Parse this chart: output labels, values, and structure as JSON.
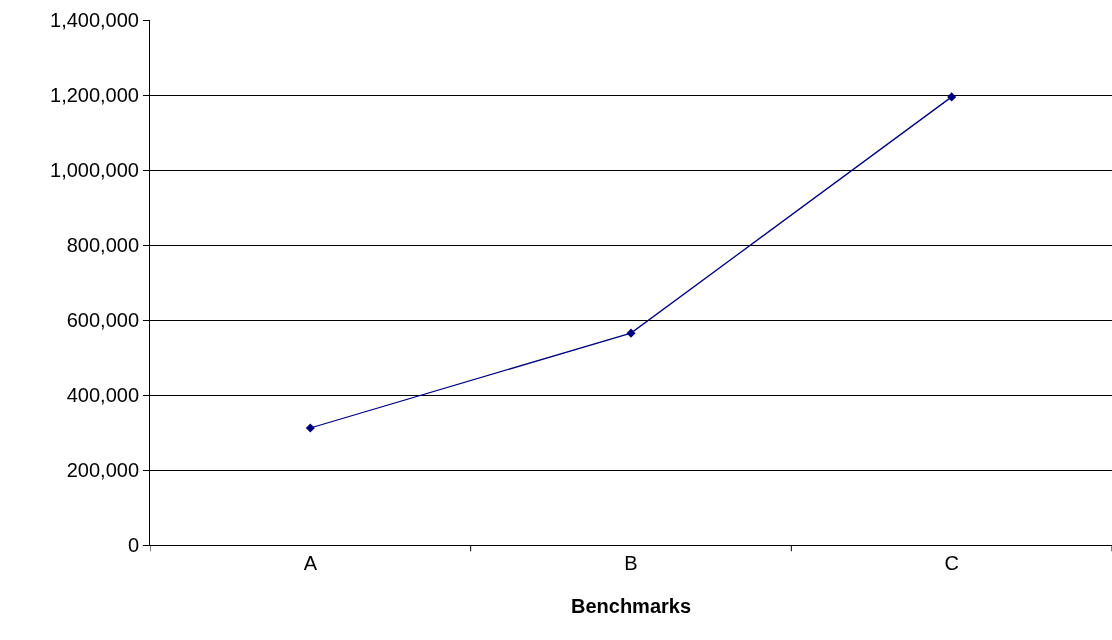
{
  "chart_data": {
    "type": "line",
    "xlabel": "Benchmarks",
    "categories": [
      "A",
      "B",
      "C"
    ],
    "series": [
      {
        "color": "#000080",
        "values": [
          312000,
          565000,
          1195000
        ]
      }
    ],
    "ylim": [
      0,
      1400000
    ],
    "yticks": [
      {
        "value": 0,
        "label": "0"
      },
      {
        "value": 200000,
        "label": "200,000"
      },
      {
        "value": 400000,
        "label": "400,000"
      },
      {
        "value": 600000,
        "label": "600,000"
      },
      {
        "value": 800000,
        "label": "800,000"
      },
      {
        "value": 1000000,
        "label": "1,000,000"
      },
      {
        "value": 1200000,
        "label": "1,200,000"
      },
      {
        "value": 1400000,
        "label": "1,400,000"
      }
    ],
    "grid": "y",
    "marker": "diamond",
    "line_style": "solid"
  }
}
